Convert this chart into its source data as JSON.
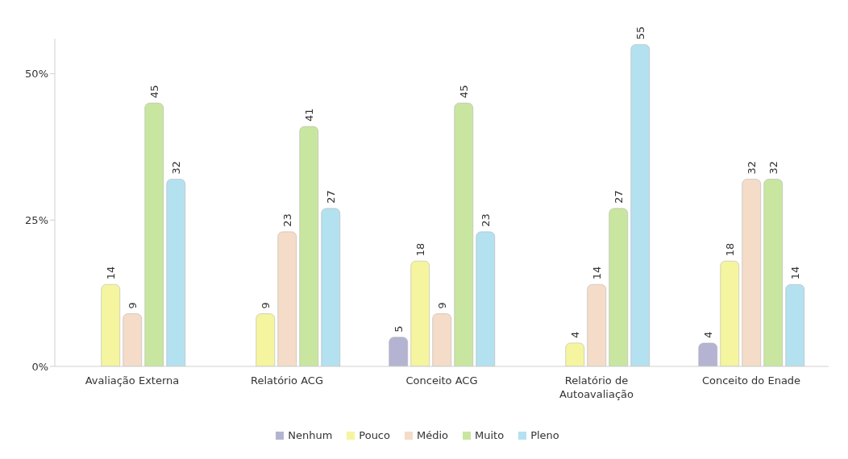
{
  "chart_data": {
    "type": "bar",
    "categories": [
      "Avaliação Externa",
      "Relatório ACG",
      "Conceito ACG",
      "Relatório de Autoavaliação",
      "Conceito do Enade"
    ],
    "series": [
      {
        "name": "Nenhum",
        "color": "#b4b4d2",
        "values": [
          null,
          null,
          5,
          null,
          4
        ]
      },
      {
        "name": "Pouco",
        "color": "#f5f5a0",
        "values": [
          14,
          9,
          18,
          4,
          18
        ]
      },
      {
        "name": "Médio",
        "color": "#f5dcc8",
        "values": [
          9,
          23,
          9,
          14,
          32
        ]
      },
      {
        "name": "Muito",
        "color": "#c8e6a0",
        "values": [
          45,
          41,
          45,
          27,
          32
        ]
      },
      {
        "name": "Pleno",
        "color": "#b4e1f0",
        "values": [
          32,
          27,
          23,
          55,
          14
        ]
      }
    ],
    "ylim": [
      0,
      56
    ],
    "yticks": [
      {
        "value": 0,
        "label": "0%"
      },
      {
        "value": 25,
        "label": "25%"
      },
      {
        "value": 50,
        "label": "50%"
      }
    ],
    "data_labels": true,
    "grid": false,
    "legend": "bottom"
  }
}
